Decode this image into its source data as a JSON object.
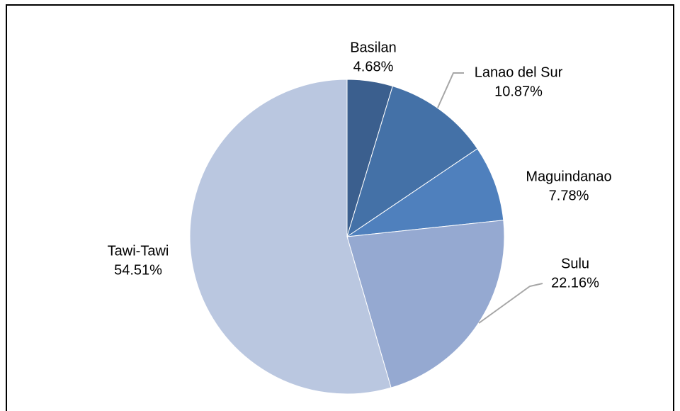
{
  "chart_data": {
    "type": "pie",
    "categories": [
      "Basilan",
      "Lanao del Sur",
      "Maguindanao",
      "Sulu",
      "Tawi-Tawi"
    ],
    "values": [
      4.68,
      10.87,
      7.78,
      22.16,
      54.51
    ],
    "value_labels": [
      "4.68%",
      "10.87%",
      "7.78%",
      "22.16%",
      "54.51%"
    ],
    "colors": [
      "#3b5f8e",
      "#4471a7",
      "#4f80bd",
      "#95a9d1",
      "#bac7e0"
    ]
  }
}
